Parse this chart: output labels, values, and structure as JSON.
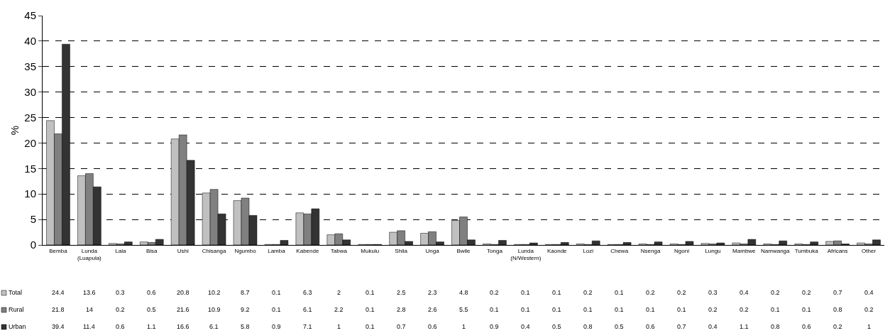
{
  "chart_data": {
    "type": "bar",
    "ylabel": "%",
    "categories": [
      "Bemba",
      "Lunda (Luapula)",
      "Lala",
      "Bisa",
      "Ushi",
      "Chisanga",
      "Ngumbo",
      "Lamba",
      "Kabende",
      "Tabwa",
      "Mukulu",
      "Shila",
      "Unga",
      "Bwile",
      "Tonga",
      "Lunda (N/Western)",
      "Kaonde",
      "Lozi",
      "Chewa",
      "Nsenga",
      "Ngoni",
      "Lungu",
      "Mambwe",
      "Namwanga",
      "Tumbuka",
      "Africans",
      "Other"
    ],
    "series": [
      {
        "name": "Total",
        "color": "#c0c0c0",
        "values": [
          24.4,
          13.6,
          0.3,
          0.6,
          20.8,
          10.2,
          8.7,
          0.1,
          6.3,
          2,
          0.1,
          2.5,
          2.3,
          4.8,
          0.2,
          0.1,
          0.1,
          0.2,
          0.1,
          0.2,
          0.2,
          0.3,
          0.4,
          0.2,
          0.2,
          0.7,
          0.4
        ]
      },
      {
        "name": "Rural",
        "color": "#808080",
        "values": [
          21.8,
          14,
          0.2,
          0.5,
          21.6,
          10.9,
          9.2,
          0.1,
          6.1,
          2.2,
          0.1,
          2.8,
          2.6,
          5.5,
          0.1,
          0.1,
          0.1,
          0.1,
          0.1,
          0.1,
          0.1,
          0.2,
          0.2,
          0.1,
          0.1,
          0.8,
          0.2
        ]
      },
      {
        "name": "Urban",
        "color": "#333333",
        "values": [
          39.4,
          11.4,
          0.6,
          1.1,
          16.6,
          6.1,
          5.8,
          0.9,
          7.1,
          1,
          0.1,
          0.7,
          0.6,
          1,
          0.9,
          0.4,
          0.5,
          0.8,
          0.5,
          0.6,
          0.7,
          0.4,
          1.1,
          0.8,
          0.6,
          0.2,
          1
        ]
      }
    ],
    "ylim": [
      0,
      45
    ],
    "yticks": [
      0,
      5,
      10,
      15,
      20,
      25,
      30,
      35,
      40,
      45
    ],
    "grid": "y",
    "legend": "bottom left",
    "data_labels": true
  }
}
